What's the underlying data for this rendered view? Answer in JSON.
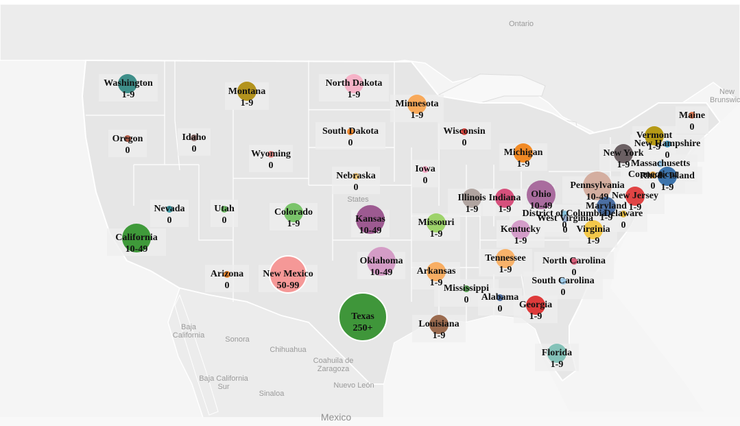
{
  "map": {
    "geo_labels": [
      {
        "id": "ontario",
        "text": "Ontario"
      },
      {
        "id": "new-brunswick",
        "text": "New Brunswick"
      },
      {
        "id": "baja-california",
        "text": "Baja California"
      },
      {
        "id": "sonora",
        "text": "Sonora"
      },
      {
        "id": "chihuahua",
        "text": "Chihuahua"
      },
      {
        "id": "coahuila",
        "text": "Coahuila de Zaragoza"
      },
      {
        "id": "baja-california-sur",
        "text": "Baja California Sur"
      },
      {
        "id": "sinaloa",
        "text": "Sinaloa"
      },
      {
        "id": "nuevo-leon",
        "text": "Nuevo León"
      },
      {
        "id": "mexico",
        "text": "Mexico"
      },
      {
        "id": "united-states",
        "text": "States"
      }
    ],
    "palette": {
      "land": "#e9e9e9",
      "border": "#ffffff",
      "water": "#f6f6f6",
      "label_bg": "#efefef"
    },
    "states": [
      {
        "name": "Washington",
        "value": "1-9",
        "color": "#3f8f8a"
      },
      {
        "name": "Montana",
        "value": "1-9",
        "color": "#b3931e"
      },
      {
        "name": "North Dakota",
        "value": "1-9",
        "color": "#f6b2c7"
      },
      {
        "name": "Minnesota",
        "value": "1-9",
        "color": "#f8a95a"
      },
      {
        "name": "Oregon",
        "value": "0",
        "color": "#b9634e"
      },
      {
        "name": "Idaho",
        "value": "0",
        "color": "#9d7c79"
      },
      {
        "name": "South Dakota",
        "value": "0",
        "color": "#f08a30"
      },
      {
        "name": "Wisconsin",
        "value": "0",
        "color": "#d9453e"
      },
      {
        "name": "Wyoming",
        "value": "0",
        "color": "#f3928f"
      },
      {
        "name": "Michigan",
        "value": "1-9",
        "color": "#f18a25"
      },
      {
        "name": "Maine",
        "value": "0",
        "color": "#e07a53"
      },
      {
        "name": "Vermont",
        "value": "1-9",
        "color": "#b69a16"
      },
      {
        "name": "New Hampshire",
        "value": "0",
        "color": "#4a9ec2"
      },
      {
        "name": "New York",
        "value": "1-9",
        "color": "#6b6063"
      },
      {
        "name": "Massachusetts",
        "value": "0",
        "color": "#96c3e3"
      },
      {
        "name": "Connecticut",
        "value": "0",
        "color": "#e3a341"
      },
      {
        "name": "Rhode Island",
        "value": "1-9",
        "color": "#3d74ac"
      },
      {
        "name": "Nebraska",
        "value": "0",
        "color": "#f2c97c"
      },
      {
        "name": "Iowa",
        "value": "0",
        "color": "#f4a6c2"
      },
      {
        "name": "Illinois",
        "value": "1-9",
        "color": "#b0a4a0"
      },
      {
        "name": "Indiana",
        "value": "1-9",
        "color": "#d6507c"
      },
      {
        "name": "Ohio",
        "value": "10-49",
        "color": "#a96c9e"
      },
      {
        "name": "Pennsylvania",
        "value": "10-49",
        "color": "#d4aea0"
      },
      {
        "name": "New Jersey",
        "value": "1-9",
        "color": "#e04444"
      },
      {
        "name": "Maryland",
        "value": "1-9",
        "color": "#4b6fa3"
      },
      {
        "name": "Delaware",
        "value": "0",
        "color": "#e3b93e"
      },
      {
        "name": "District of Columbia",
        "value": "0",
        "color": "#86bfd9"
      },
      {
        "name": "Nevada",
        "value": "0",
        "color": "#3e9aa6"
      },
      {
        "name": "Utah",
        "value": "0",
        "color": "#74c46a"
      },
      {
        "name": "Colorado",
        "value": "1-9",
        "color": "#7ac46a"
      },
      {
        "name": "Kansas",
        "value": "10-49",
        "color": "#9d5a91"
      },
      {
        "name": "Missouri",
        "value": "1-9",
        "color": "#9ed36b"
      },
      {
        "name": "Kentucky",
        "value": "1-9",
        "color": "#d49cc9"
      },
      {
        "name": "West Virginia",
        "value": "0",
        "color": "#9ab0d0"
      },
      {
        "name": "Virginia",
        "value": "1-9",
        "color": "#f3c84a"
      },
      {
        "name": "California",
        "value": "10-49",
        "color": "#3f9a3a"
      },
      {
        "name": "Tennessee",
        "value": "1-9",
        "color": "#f8b26a"
      },
      {
        "name": "North Carolina",
        "value": "0",
        "color": "#d85e7a"
      },
      {
        "name": "Arizona",
        "value": "0",
        "color": "#f08a30"
      },
      {
        "name": "New Mexico",
        "value": "50-99",
        "color": "#f59897"
      },
      {
        "name": "Oklahoma",
        "value": "10-49",
        "color": "#d49cc6"
      },
      {
        "name": "Arkansas",
        "value": "1-9",
        "color": "#f8ae63"
      },
      {
        "name": "Mississippi",
        "value": "0",
        "color": "#5fa85a"
      },
      {
        "name": "Alabama",
        "value": "0",
        "color": "#5173a6"
      },
      {
        "name": "Georgia",
        "value": "1-9",
        "color": "#de3b3b"
      },
      {
        "name": "South Carolina",
        "value": "0",
        "color": "#9ecae8"
      },
      {
        "name": "Texas",
        "value": "250+",
        "color": "#3f963a"
      },
      {
        "name": "Louisiana",
        "value": "1-9",
        "color": "#9b6b4f"
      },
      {
        "name": "Florida",
        "value": "1-9",
        "color": "#84c2b8"
      }
    ]
  }
}
